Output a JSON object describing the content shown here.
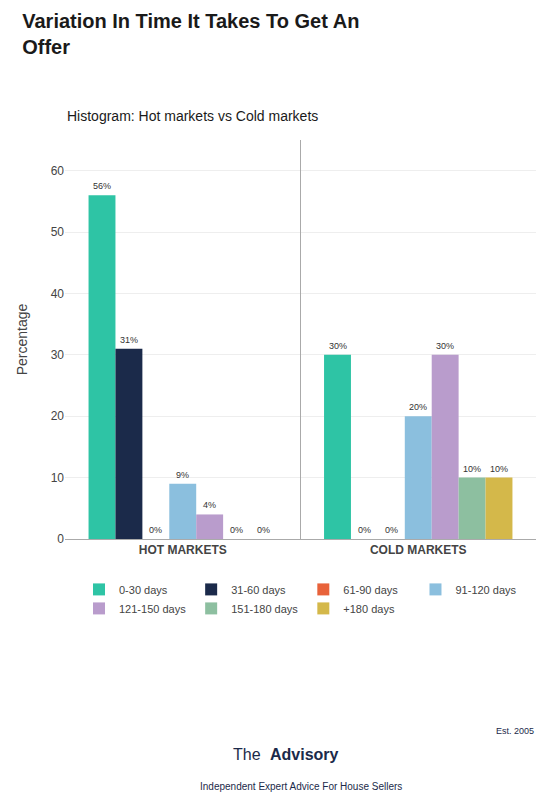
{
  "chart_data": {
    "type": "bar",
    "title": "Variation In Time It Takes To Get An\nOffer",
    "subtitle": "Histogram: Hot markets vs Cold markets",
    "ylabel": "Percentage",
    "categories": [
      "HOT MARKETS",
      "COLD MARKETS"
    ],
    "series": [
      {
        "name": "0-30 days",
        "color": "#2ec4a5",
        "values": [
          56,
          30
        ],
        "value_labels": [
          "56%",
          "30%"
        ]
      },
      {
        "name": "31-60 days",
        "color": "#1b2a4a",
        "values": [
          31,
          0
        ],
        "value_labels": [
          "31%",
          "0%"
        ]
      },
      {
        "name": "61-90 days",
        "color": "#e8623a",
        "values": [
          0,
          0
        ],
        "value_labels": [
          "0%",
          "0%"
        ]
      },
      {
        "name": "91-120 days",
        "color": "#8bbfde",
        "values": [
          9,
          20
        ],
        "value_labels": [
          "9%",
          "20%"
        ]
      },
      {
        "name": "121-150 days",
        "color": "#b99ccc",
        "values": [
          4,
          30
        ],
        "value_labels": [
          "4%",
          "30%"
        ]
      },
      {
        "name": "151-180 days",
        "color": "#8dbfa0",
        "values": [
          0,
          10
        ],
        "value_labels": [
          "0%",
          "10%"
        ]
      },
      {
        "name": "+180 days",
        "color": "#d4b84a",
        "values": [
          0,
          10
        ],
        "value_labels": [
          "0%",
          "10%"
        ]
      }
    ],
    "ylim": [
      0,
      65
    ],
    "yticks": [
      0,
      10,
      20,
      30,
      40,
      50,
      60
    ],
    "grid": true,
    "legend": "bottom",
    "data_labels": true,
    "annotations": [
      "The",
      "Advisory",
      "Est. 2005",
      "Independent Expert Advice For House Sellers"
    ]
  }
}
